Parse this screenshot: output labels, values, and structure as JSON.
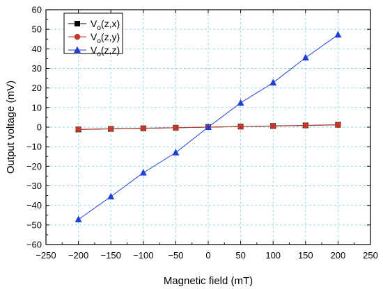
{
  "chart_data": {
    "type": "line",
    "xlabel": "Magnetic field (mT)",
    "ylabel": "Output voltage (mV)",
    "xlim": [
      -250,
      250
    ],
    "ylim": [
      -60,
      60
    ],
    "xticks": [
      -250,
      -200,
      -150,
      -100,
      -50,
      0,
      50,
      100,
      150,
      200,
      250
    ],
    "yticks": [
      -60,
      -50,
      -40,
      -30,
      -20,
      -10,
      0,
      10,
      20,
      30,
      40,
      50,
      60
    ],
    "xtick_labels": [
      "−250",
      "−200",
      "−150",
      "−100",
      "−50",
      "0",
      "50",
      "100",
      "150",
      "200",
      "250"
    ],
    "ytick_labels": [
      "−60",
      "−50",
      "−40",
      "−30",
      "−20",
      "−10",
      "0",
      "10",
      "20",
      "30",
      "40",
      "50",
      "60"
    ],
    "grid": true,
    "legend_position": "top-left",
    "x": [
      -200,
      -150,
      -100,
      -50,
      0,
      50,
      100,
      150,
      200
    ],
    "series": [
      {
        "name": "V_o(z,x)",
        "legend_main": "V",
        "legend_sub": "o",
        "legend_rest": "(z,x)",
        "marker": "square",
        "color": "#000000",
        "line_color": "#000000",
        "values": [
          -1.2,
          -0.9,
          -0.6,
          -0.3,
          0.0,
          0.3,
          0.6,
          0.9,
          1.2
        ]
      },
      {
        "name": "V_o(z,y)",
        "legend_main": "V",
        "legend_sub": "o",
        "legend_rest": "(z,y)",
        "marker": "circle",
        "color": "#c0392b",
        "line_color": "#c0392b",
        "values": [
          -1.1,
          -0.85,
          -0.55,
          -0.3,
          0.0,
          0.25,
          0.55,
          0.85,
          1.1
        ]
      },
      {
        "name": "V_o(z,z)",
        "legend_main": "V",
        "legend_sub": "o",
        "legend_rest": "(z,z)",
        "marker": "triangle",
        "color": "#1f3fd6",
        "line_color": "#1f3fd6",
        "values": [
          -47.2,
          -35.5,
          -23.3,
          -13.0,
          0.0,
          12.4,
          22.7,
          35.5,
          47.2
        ]
      }
    ]
  }
}
